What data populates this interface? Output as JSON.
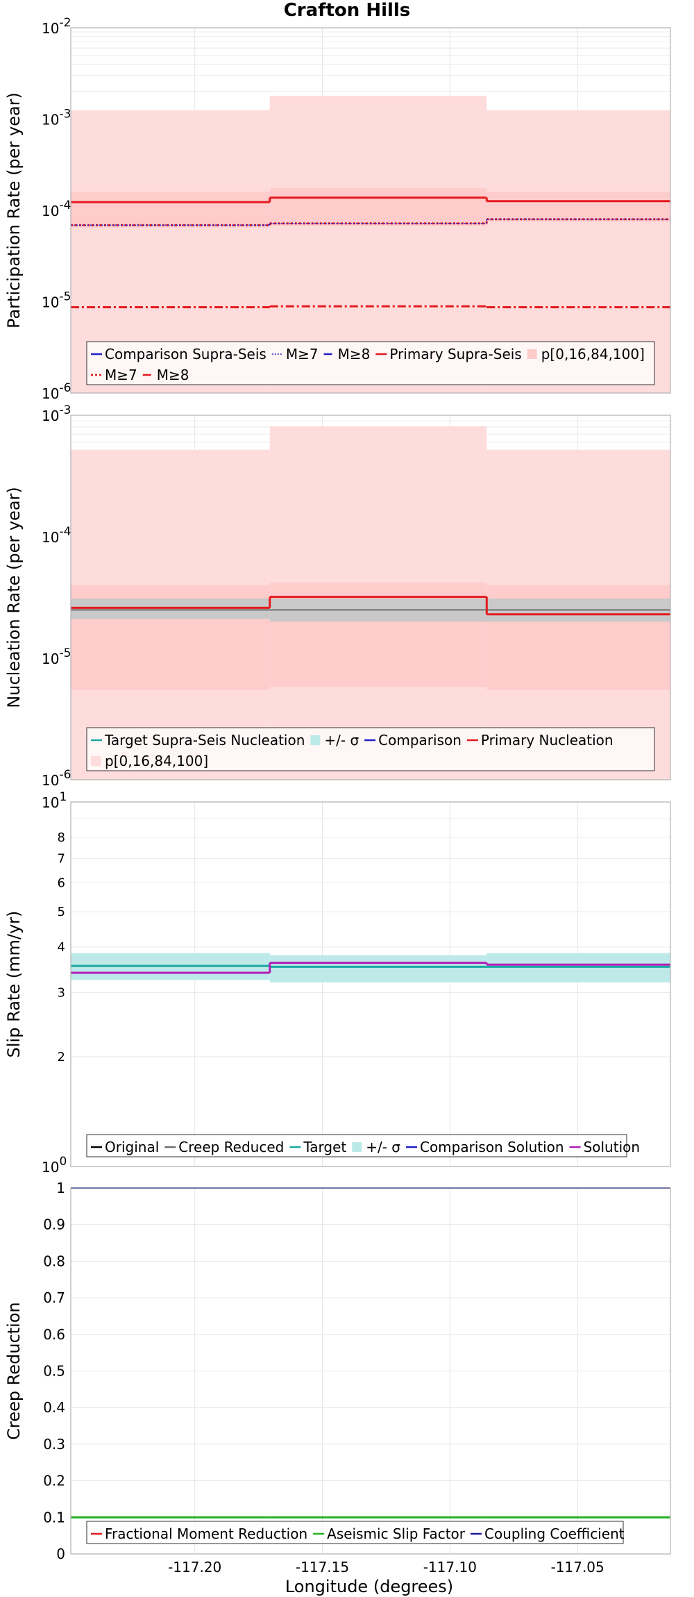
{
  "title": "Crafton Hills",
  "xlabel": "Longitude (degrees)",
  "x_ticks": [
    -117.2,
    -117.15,
    -117.1,
    -117.05
  ],
  "x_tick_labels": [
    "-117.20",
    "-117.15",
    "-117.10",
    "-117.05"
  ],
  "xlim": [
    -117.2486,
    -117.0136
  ],
  "sections": [
    -117.2486,
    -117.1706,
    -117.0856,
    -117.0136
  ],
  "colors": {
    "blue": "#1f1fc8",
    "red": "#e31a1c",
    "teal": "#1aa9a0",
    "gray": "#6e6e6e",
    "purple": "#b01cb5",
    "green": "#22b022",
    "navy": "#1a1a9c",
    "pink_band": "#ffcccc",
    "pink_fill": "#ffdcdc",
    "teal_band": "#bde9e9",
    "gray_band": "#c9c9c9",
    "grid": "#e6e6e6",
    "frame": "#b0b0b0"
  },
  "chart_data": [
    {
      "id": "participation",
      "type": "line",
      "ylabel": "Participation Rate (per year)",
      "yscale": "log",
      "ylim": [
        1e-06,
        0.01
      ],
      "y_tick_labels": [
        {
          "base": "10",
          "exp": "-6"
        },
        {
          "base": "10",
          "exp": "-5"
        },
        {
          "base": "10",
          "exp": "-4"
        },
        {
          "base": "10",
          "exp": "-3"
        },
        {
          "base": "10",
          "exp": "-2"
        }
      ],
      "bands": [
        {
          "name": "p[0,16,84,100] outer",
          "color": "pink_fill",
          "low": [
            1e-06,
            1e-06,
            1e-06
          ],
          "high": [
            0.00125,
            0.0018,
            0.00125
          ]
        },
        {
          "name": "p[16,84]",
          "color": "pink_band",
          "low": [
            6.5e-05,
            6.8e-05,
            7.5e-05
          ],
          "high": [
            0.00016,
            0.000175,
            0.00016
          ]
        }
      ],
      "series": [
        {
          "name": "Primary Supra-Seis",
          "color": "red",
          "style": "solid",
          "width": 3,
          "values": [
            0.000123,
            0.000138,
            0.000126
          ]
        },
        {
          "name": "M≥7 (primary)",
          "color": "red",
          "style": "dot",
          "width": 3,
          "values": [
            6.9e-05,
            7.2e-05,
            8e-05
          ]
        },
        {
          "name": "M≥7 (comparison)",
          "color": "blue",
          "style": "fine",
          "width": 1.5,
          "values": [
            6.9e-05,
            7.2e-05,
            8e-05
          ]
        },
        {
          "name": "M≥8",
          "color": "red",
          "style": "dashdot",
          "width": 3,
          "values": [
            8.7e-06,
            8.9e-06,
            8.7e-06
          ]
        }
      ],
      "legend": [
        {
          "label": "Comparison Supra-Seis",
          "kind": "line",
          "color": "blue",
          "style": "solid"
        },
        {
          "label": "M≥7",
          "kind": "line",
          "color": "blue",
          "style": "fine"
        },
        {
          "label": "M≥8",
          "kind": "line",
          "color": "blue",
          "style": "dashdot"
        },
        {
          "label": "Primary Supra-Seis",
          "kind": "line",
          "color": "red",
          "style": "solid"
        },
        {
          "label": "p[0,16,84,100]",
          "kind": "patch",
          "color": "pink_band"
        },
        {
          "label": "M≥7",
          "kind": "line",
          "color": "red",
          "style": "dot"
        },
        {
          "label": "M≥8",
          "kind": "line",
          "color": "red",
          "style": "dashdot"
        }
      ]
    },
    {
      "id": "nucleation",
      "type": "line",
      "ylabel": "Nucleation Rate (per year)",
      "yscale": "log",
      "ylim": [
        1e-06,
        0.001
      ],
      "y_tick_labels": [
        {
          "base": "10",
          "exp": "-6"
        },
        {
          "base": "10",
          "exp": "-5"
        },
        {
          "base": "10",
          "exp": "-4"
        },
        {
          "base": "10",
          "exp": "-3"
        }
      ],
      "bands": [
        {
          "name": "p[0,16,84,100] outer",
          "color": "pink_fill",
          "low": [
            1e-06,
            1e-06,
            1e-06
          ],
          "high": [
            0.00052,
            0.00081,
            0.00052
          ]
        },
        {
          "name": "p[16,84]",
          "color": "pink_band",
          "low": [
            5.5e-06,
            5.8e-06,
            5.5e-06
          ],
          "high": [
            4e-05,
            4.2e-05,
            4e-05
          ]
        },
        {
          "name": "+/- σ",
          "color": "gray_band",
          "low": [
            2.1e-05,
            2e-05,
            2e-05
          ],
          "high": [
            3.1e-05,
            3.1e-05,
            3.1e-05
          ]
        }
      ],
      "series": [
        {
          "name": "Comparison",
          "color": "gray",
          "style": "solid",
          "width": 2,
          "values": [
            2.5e-05,
            2.5e-05,
            2.5e-05
          ]
        },
        {
          "name": "Primary Nucleation",
          "color": "red",
          "style": "solid",
          "width": 3,
          "values": [
            2.6e-05,
            3.2e-05,
            2.3e-05
          ]
        }
      ],
      "legend": [
        {
          "label": "Target Supra-Seis Nucleation",
          "kind": "line",
          "color": "teal",
          "style": "solid"
        },
        {
          "label": "+/- σ",
          "kind": "patch",
          "color": "teal_band"
        },
        {
          "label": "Comparison",
          "kind": "line",
          "color": "blue",
          "style": "solid"
        },
        {
          "label": "Primary Nucleation",
          "kind": "line",
          "color": "red",
          "style": "solid"
        },
        {
          "label": "p[0,16,84,100]",
          "kind": "patch",
          "color": "pink_fill"
        }
      ]
    },
    {
      "id": "slip",
      "type": "line",
      "ylabel": "Slip Rate (mm/yr)",
      "yscale": "log",
      "ylim": [
        1,
        10
      ],
      "y_tick_labels": [
        {
          "base": "10",
          "exp": "0"
        },
        {
          "base": "10",
          "exp": "1"
        }
      ],
      "minor_labels": [
        "2",
        "3",
        "4",
        "5",
        "6",
        "7",
        "8"
      ],
      "bands": [
        {
          "name": "+/- σ",
          "color": "teal_band",
          "low": [
            3.25,
            3.2,
            3.2
          ],
          "high": [
            3.85,
            3.8,
            3.85
          ]
        }
      ],
      "series": [
        {
          "name": "Target",
          "color": "teal",
          "style": "solid",
          "width": 3,
          "values": [
            3.55,
            3.53,
            3.53
          ]
        },
        {
          "name": "Solution",
          "color": "purple",
          "style": "solid",
          "width": 3,
          "values": [
            3.4,
            3.62,
            3.58
          ]
        }
      ],
      "legend": [
        {
          "label": "Original",
          "kind": "line",
          "color": "black",
          "style": "solid"
        },
        {
          "label": "Creep Reduced",
          "kind": "line",
          "color": "gray",
          "style": "solid"
        },
        {
          "label": "Target",
          "kind": "line",
          "color": "teal",
          "style": "solid"
        },
        {
          "label": "+/- σ",
          "kind": "patch",
          "color": "teal_band"
        },
        {
          "label": "Comparison Solution",
          "kind": "line",
          "color": "blue",
          "style": "solid"
        },
        {
          "label": "Solution",
          "kind": "line",
          "color": "purple",
          "style": "solid"
        }
      ]
    },
    {
      "id": "creep",
      "type": "line",
      "ylabel": "Creep Reduction",
      "yscale": "linear",
      "ylim": [
        0,
        1
      ],
      "y_ticks": [
        0,
        0.1,
        0.2,
        0.3,
        0.4,
        0.5,
        0.6,
        0.7,
        0.8,
        0.9,
        1
      ],
      "y_tick_texts": [
        "0",
        "0.1",
        "0.2",
        "0.3",
        "0.4",
        "0.5",
        "0.6",
        "0.7",
        "0.8",
        "0.9",
        "1"
      ],
      "bands": [],
      "series": [
        {
          "name": "Coupling Coefficient",
          "color": "navy",
          "style": "solid",
          "width": 2,
          "values": [
            1,
            1,
            1
          ]
        },
        {
          "name": "Aseismic Slip Factor",
          "color": "green",
          "style": "solid",
          "width": 3,
          "values": [
            0.1,
            0.1,
            0.1
          ]
        }
      ],
      "legend": [
        {
          "label": "Fractional Moment Reduction",
          "kind": "line",
          "color": "red",
          "style": "solid"
        },
        {
          "label": "Aseismic Slip Factor",
          "kind": "line",
          "color": "green",
          "style": "solid"
        },
        {
          "label": "Coupling Coefficient",
          "kind": "line",
          "color": "navy",
          "style": "solid"
        }
      ]
    }
  ]
}
